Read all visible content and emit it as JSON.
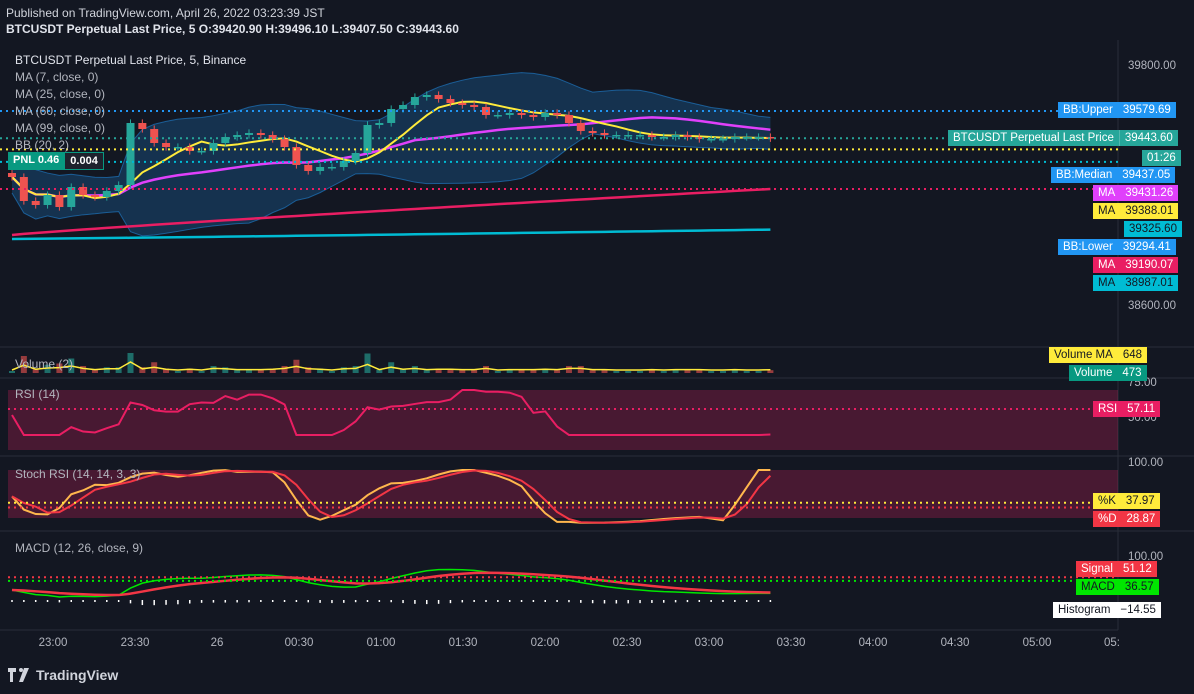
{
  "header": {
    "published": "Published on TradingView.com, April 26, 2022 03:23:39 JST",
    "ohlc": "BTCUSDT Perpetual Last Price, 5  O:39420.90 H:39496.10 L:39407.50 C:39443.60"
  },
  "main_legend": {
    "title": "BTCUSDT Perpetual Last Price, 5, Binance",
    "items": [
      "MA (7, close, 0)",
      "MA (25, close, 0)",
      "MA (60, close, 0)",
      "MA (99, close, 0)",
      "BB (20, 2)"
    ]
  },
  "pnl": {
    "label": "PNL 0.46",
    "value": "0.004"
  },
  "price_labels": [
    {
      "name": "BB:Upper",
      "value": "39579.69",
      "color": "#2196f3"
    },
    {
      "name": "BTCUSDT Perpetual Last Price",
      "value": "39443.60",
      "color": "#26a69a"
    },
    {
      "name": "",
      "value": "01:26",
      "color": "#26a69a"
    },
    {
      "name": "BB:Median",
      "value": "39437.05",
      "color": "#2196f3"
    },
    {
      "name": "MA",
      "value": "39431.26",
      "color": "#e040fb"
    },
    {
      "name": "MA",
      "value": "39388.01",
      "color": "#ffeb3b"
    },
    {
      "name": "",
      "value": "39325.60",
      "color": "#00bcd4"
    },
    {
      "name": "BB:Lower",
      "value": "39294.41",
      "color": "#2196f3"
    },
    {
      "name": "MA",
      "value": "39190.07",
      "color": "#e91e63"
    },
    {
      "name": "MA",
      "value": "38987.01",
      "color": "#00bcd4"
    }
  ],
  "y_ticks": {
    "price": [
      "39800.00",
      "38600.00"
    ],
    "rsi": [
      "75.00",
      "50.00"
    ],
    "stoch": [
      "100.00"
    ],
    "macd": [
      "100.00"
    ]
  },
  "x_ticks": [
    "23:00",
    "23:30",
    "26",
    "00:30",
    "01:00",
    "01:30",
    "02:00",
    "02:30",
    "03:00",
    "03:30",
    "04:00",
    "04:30",
    "05:00",
    "05:"
  ],
  "volume": {
    "title": "Volume (2)",
    "ma_label": "Volume MA",
    "ma_value": "648",
    "vol_label": "Volume",
    "vol_value": "473"
  },
  "rsi": {
    "title": "RSI (14)",
    "label": "RSI",
    "value": "57.11"
  },
  "stoch": {
    "title": "Stoch RSI (14, 14, 3, 3)",
    "k_label": "%K",
    "k_value": "37.97",
    "d_label": "%D",
    "d_value": "28.87"
  },
  "macd": {
    "title": "MACD (12, 26, close, 9)",
    "signal_label": "Signal",
    "signal_value": "51.12",
    "macd_label": "MACD",
    "macd_value": "36.57",
    "hist_label": "Histogram",
    "hist_value": "−14.55"
  },
  "brand": "TradingView",
  "chart_data": {
    "type": "candlestick",
    "symbol": "BTCUSDT Perpetual",
    "interval": "5",
    "x_tick_labels": [
      "23:00",
      "23:30",
      "26",
      "00:30",
      "01:00",
      "01:30",
      "02:00",
      "02:30",
      "03:00",
      "03:30",
      "04:00",
      "04:30",
      "05:00"
    ],
    "candles_close": [
      39250,
      39130,
      39110,
      39160,
      39100,
      39200,
      39160,
      39150,
      39180,
      39210,
      39520,
      39490,
      39420,
      39400,
      39400,
      39380,
      39380,
      39420,
      39450,
      39460,
      39470,
      39460,
      39440,
      39400,
      39310,
      39280,
      39300,
      39300,
      39330,
      39370,
      39510,
      39520,
      39590,
      39610,
      39650,
      39660,
      39640,
      39620,
      39610,
      39600,
      39560,
      39560,
      39570,
      39560,
      39550,
      39570,
      39560,
      39520,
      39480,
      39470,
      39460,
      39460,
      39460,
      39460,
      39450,
      39450,
      39460,
      39450,
      39440,
      39440,
      39440,
      39450,
      39450,
      39450,
      39443.6
    ],
    "series": [
      {
        "name": "MA (7)",
        "last": 39388.01,
        "color": "#ffeb3b"
      },
      {
        "name": "MA (25)",
        "last": 39431.26,
        "color": "#e040fb"
      },
      {
        "name": "MA (60)",
        "last": 39190.07,
        "color": "#e91e63"
      },
      {
        "name": "MA (99)",
        "last": 38987.01,
        "color": "#00bcd4"
      },
      {
        "name": "BB:Upper",
        "last": 39579.69
      },
      {
        "name": "BB:Median",
        "last": 39437.05
      },
      {
        "name": "BB:Lower",
        "last": 39294.41
      }
    ],
    "rsi_last": 57.11,
    "stoch_k_last": 37.97,
    "stoch_d_last": 28.87,
    "macd_last": 36.57,
    "signal_last": 51.12,
    "histogram_last": -14.55
  }
}
